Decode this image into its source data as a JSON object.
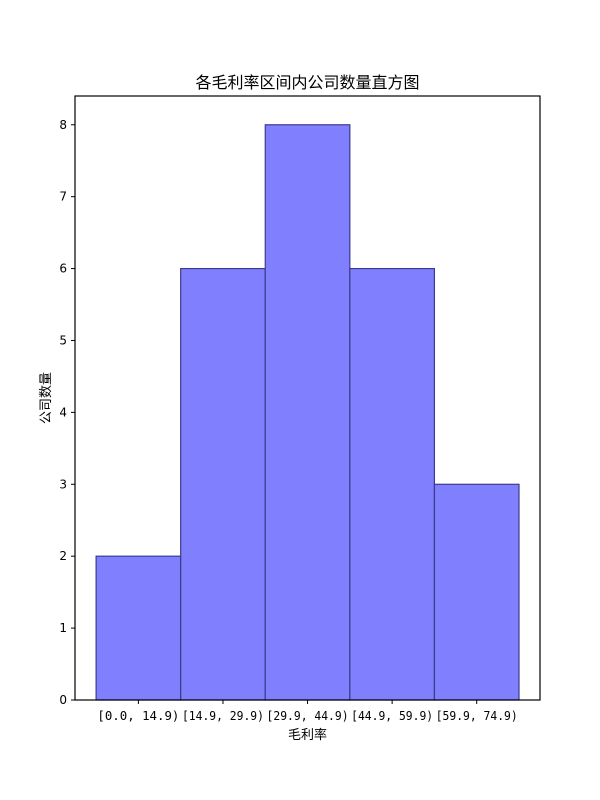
{
  "chart_data": {
    "type": "bar",
    "title": "各毛利率区间内公司数量直方图",
    "xlabel": "毛利率",
    "ylabel": "公司数量",
    "categories": [
      "[0.0, 14.9)",
      "[14.9, 29.9)",
      "[29.9, 44.9)",
      "[44.9, 59.9)",
      "[59.9, 74.9)"
    ],
    "values": [
      2,
      6,
      8,
      6,
      3
    ],
    "ylim": [
      0,
      8.4
    ],
    "yticks": [
      0,
      1,
      2,
      3,
      4,
      5,
      6,
      7,
      8
    ],
    "grid": false,
    "legend": null,
    "bar_color": "#8080ff",
    "bar_edge_color": "#3c3c8c"
  }
}
